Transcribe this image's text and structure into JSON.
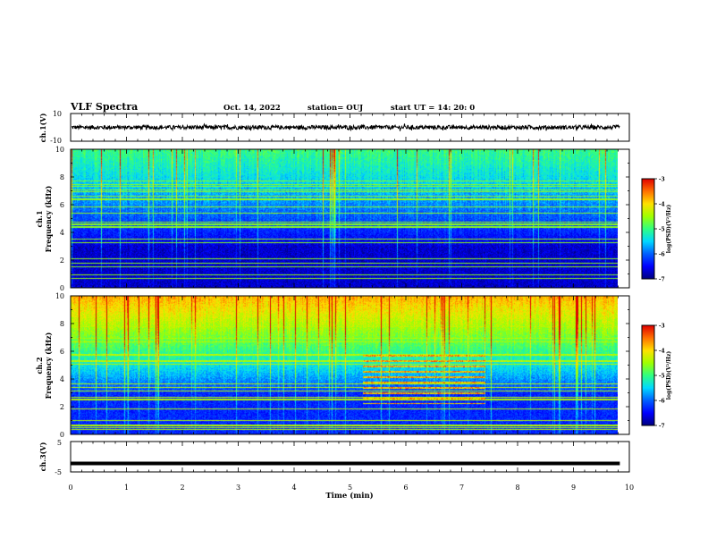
{
  "header": {
    "title": "VLF Spectra",
    "date": "Oct. 14, 2022",
    "station": "station= OUJ",
    "start": "start  UT =   14: 20: 0"
  },
  "colors": {
    "background": "#ffffff",
    "trace": "#000000",
    "colormap": [
      "#00007f",
      "#0000ff",
      "#0060ff",
      "#00d8ff",
      "#30ff80",
      "#a0ff00",
      "#ffe000",
      "#ff7000",
      "#e00000",
      "#ffffff"
    ]
  },
  "chart_data": [
    {
      "type": "line",
      "ylabel": "ch.1(V)",
      "ylim": [
        -10,
        10
      ],
      "yticks": [
        "10",
        "-10"
      ],
      "x_range_min": [
        0,
        9.83
      ],
      "baseline": 0,
      "noise_amplitude_v": 1.5
    },
    {
      "type": "heatmap",
      "ylabel_channel": "ch.1",
      "ylabel": "Frequency (kHz)",
      "ylim": [
        0,
        10
      ],
      "yticks": [
        "0",
        "2",
        "4",
        "6",
        "8",
        "10"
      ],
      "x_range_min": [
        0,
        9.83
      ],
      "colorbar": {
        "label": "log(PSD)(V²/Hz)",
        "range": [
          -7,
          -3
        ],
        "ticks": [
          "-3",
          "-4",
          "-5",
          "-6",
          "-7"
        ]
      },
      "description_levels": {
        "low_freq_log_psd": -6.7,
        "high_freq_log_psd": -5.0
      }
    },
    {
      "type": "heatmap",
      "ylabel_channel": "ch.2",
      "ylabel": "Frequency (kHz)",
      "ylim": [
        0,
        10
      ],
      "yticks": [
        "0",
        "2",
        "4",
        "6",
        "8",
        "10"
      ],
      "x_range_min": [
        0,
        9.83
      ],
      "colorbar": {
        "label": "log(PSD)(V²/Hz)",
        "range": [
          -7,
          -3
        ],
        "ticks": [
          "-3",
          "-4",
          "-5",
          "-6",
          "-7"
        ]
      },
      "description_levels": {
        "low_freq_log_psd": -6.5,
        "high_freq_log_psd": -4.0
      },
      "interference_band": {
        "t_start_min": 5.25,
        "t_end_min": 7.45,
        "f_low_khz": 2.2,
        "f_high_khz": 5.8
      }
    },
    {
      "type": "line",
      "ylabel": "ch.3(V)",
      "ylim": [
        -5,
        5
      ],
      "yticks": [
        "5",
        "-5"
      ],
      "x_range_min": [
        0,
        9.83
      ],
      "baseline": -2.2,
      "xlabel": "Time (min)",
      "xticks": [
        "0",
        "1",
        "2",
        "3",
        "4",
        "5",
        "6",
        "7",
        "8",
        "9",
        "10"
      ],
      "xlim": [
        0,
        10
      ]
    }
  ]
}
